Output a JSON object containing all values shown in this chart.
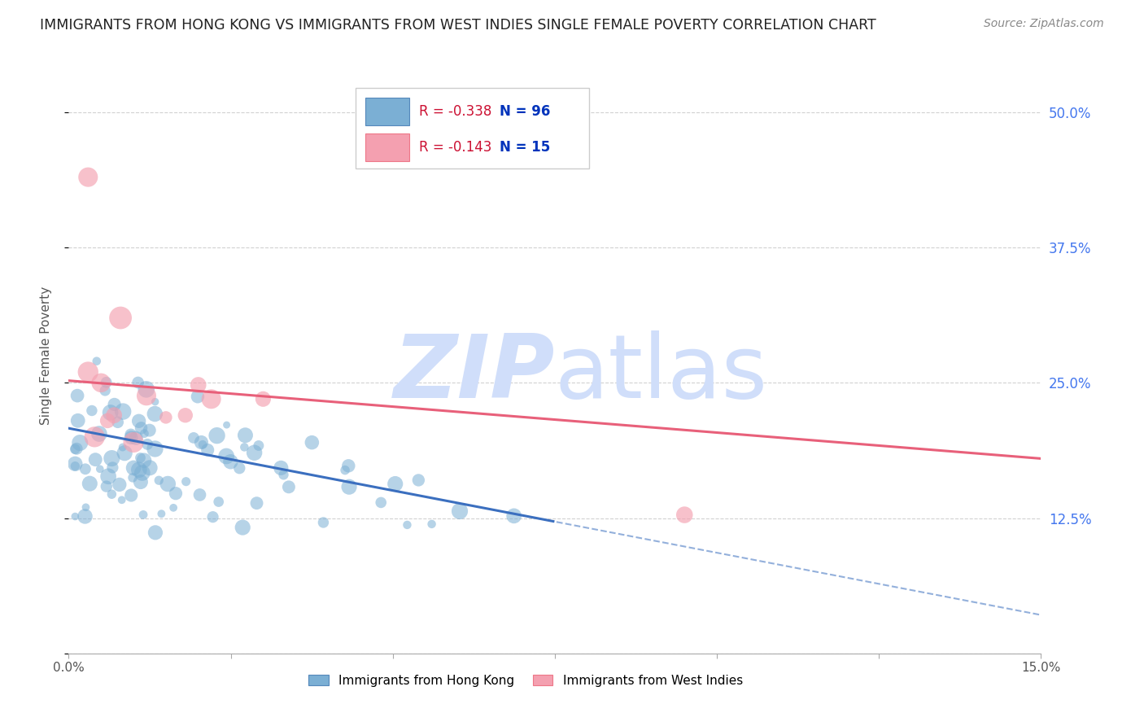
{
  "title": "IMMIGRANTS FROM HONG KONG VS IMMIGRANTS FROM WEST INDIES SINGLE FEMALE POVERTY CORRELATION CHART",
  "source": "Source: ZipAtlas.com",
  "ylabel": "Single Female Poverty",
  "xlim": [
    0.0,
    0.15
  ],
  "ylim": [
    0.0,
    0.55
  ],
  "yticks": [
    0.0,
    0.125,
    0.25,
    0.375,
    0.5
  ],
  "ytick_labels": [
    "",
    "12.5%",
    "25.0%",
    "37.5%",
    "50.0%"
  ],
  "hk_R": -0.338,
  "hk_N": 96,
  "wi_R": -0.143,
  "wi_N": 15,
  "hk_color": "#7BAFD4",
  "wi_color": "#F4A0B0",
  "hk_line_color": "#3B6FBF",
  "wi_line_color": "#E8607A",
  "background_color": "#FFFFFF",
  "grid_color": "#CCCCCC",
  "title_color": "#222222",
  "right_tick_color": "#4477EE",
  "watermark_color": "#D0DEFA",
  "legend_R_color": "#CC1133",
  "legend_N_color": "#0033BB",
  "hk_line_solid_end": 0.075,
  "wi_line_x_start": 0.0,
  "wi_line_x_end": 0.15,
  "hk_intercept": 0.208,
  "hk_slope": -1.15,
  "wi_intercept": 0.252,
  "wi_slope": -0.48
}
